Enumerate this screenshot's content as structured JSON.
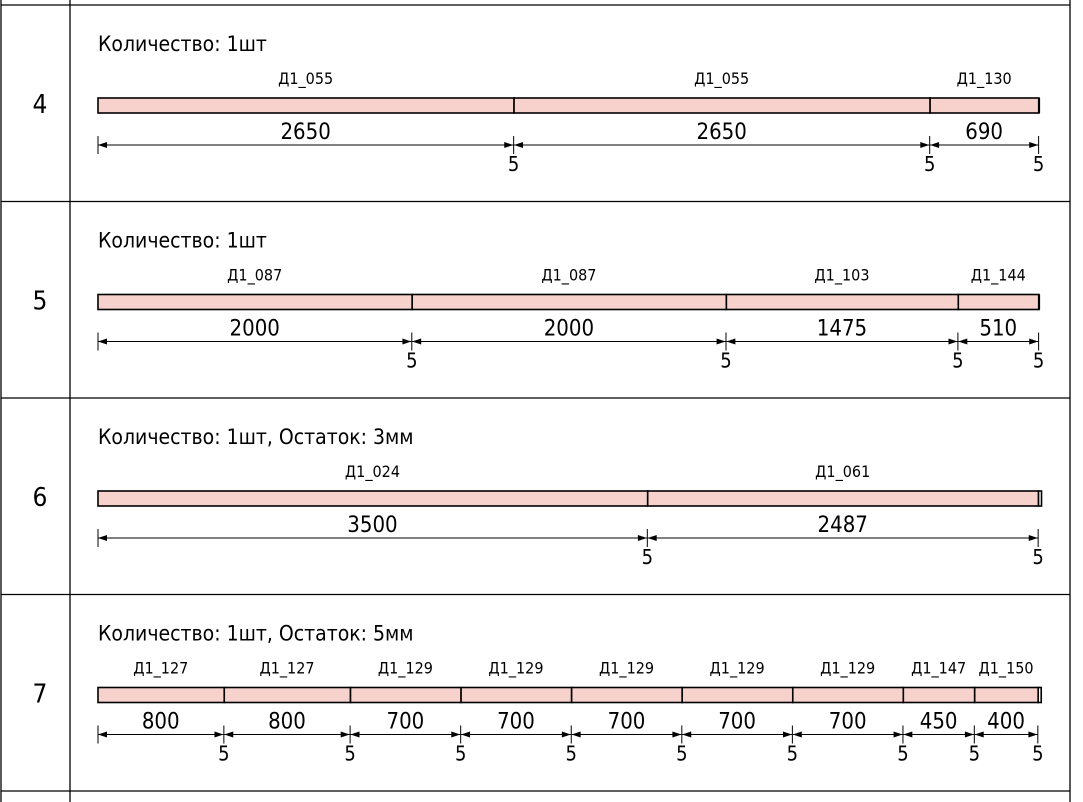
{
  "rows": [
    {
      "number": "4",
      "quantity_text": "Количество: 1шт",
      "pieces": [
        {
          "label": "Д1_055",
          "length": 2650
        },
        {
          "label": "Д1_055",
          "length": 2650
        },
        {
          "label": "Д1_130",
          "length": 690
        }
      ],
      "kerf": "5",
      "remainder": 0
    },
    {
      "number": "5",
      "quantity_text": "Количество: 1шт",
      "pieces": [
        {
          "label": "Д1_087",
          "length": 2000
        },
        {
          "label": "Д1_087",
          "length": 2000
        },
        {
          "label": "Д1_103",
          "length": 1475
        },
        {
          "label": "Д1_144",
          "length": 510
        }
      ],
      "kerf": "5",
      "remainder": 0
    },
    {
      "number": "6",
      "quantity_text": "Количество: 1шт, Остаток: 3мм",
      "pieces": [
        {
          "label": "Д1_024",
          "length": 3500
        },
        {
          "label": "Д1_061",
          "length": 2487
        }
      ],
      "kerf": "5",
      "remainder": 3
    },
    {
      "number": "7",
      "quantity_text": "Количество: 1шт, Остаток: 5мм",
      "pieces": [
        {
          "label": "Д1_127",
          "length": 800
        },
        {
          "label": "Д1_127",
          "length": 800
        },
        {
          "label": "Д1_129",
          "length": 700
        },
        {
          "label": "Д1_129",
          "length": 700
        },
        {
          "label": "Д1_129",
          "length": 700
        },
        {
          "label": "Д1_129",
          "length": 700
        },
        {
          "label": "Д1_129",
          "length": 700
        },
        {
          "label": "Д1_147",
          "length": 450
        },
        {
          "label": "Д1_150",
          "length": 400
        }
      ],
      "kerf": "5",
      "remainder": 5
    }
  ],
  "colors": {
    "piece_fill": "#f7d2cc",
    "line": "#000000",
    "background": "#ffffff"
  }
}
